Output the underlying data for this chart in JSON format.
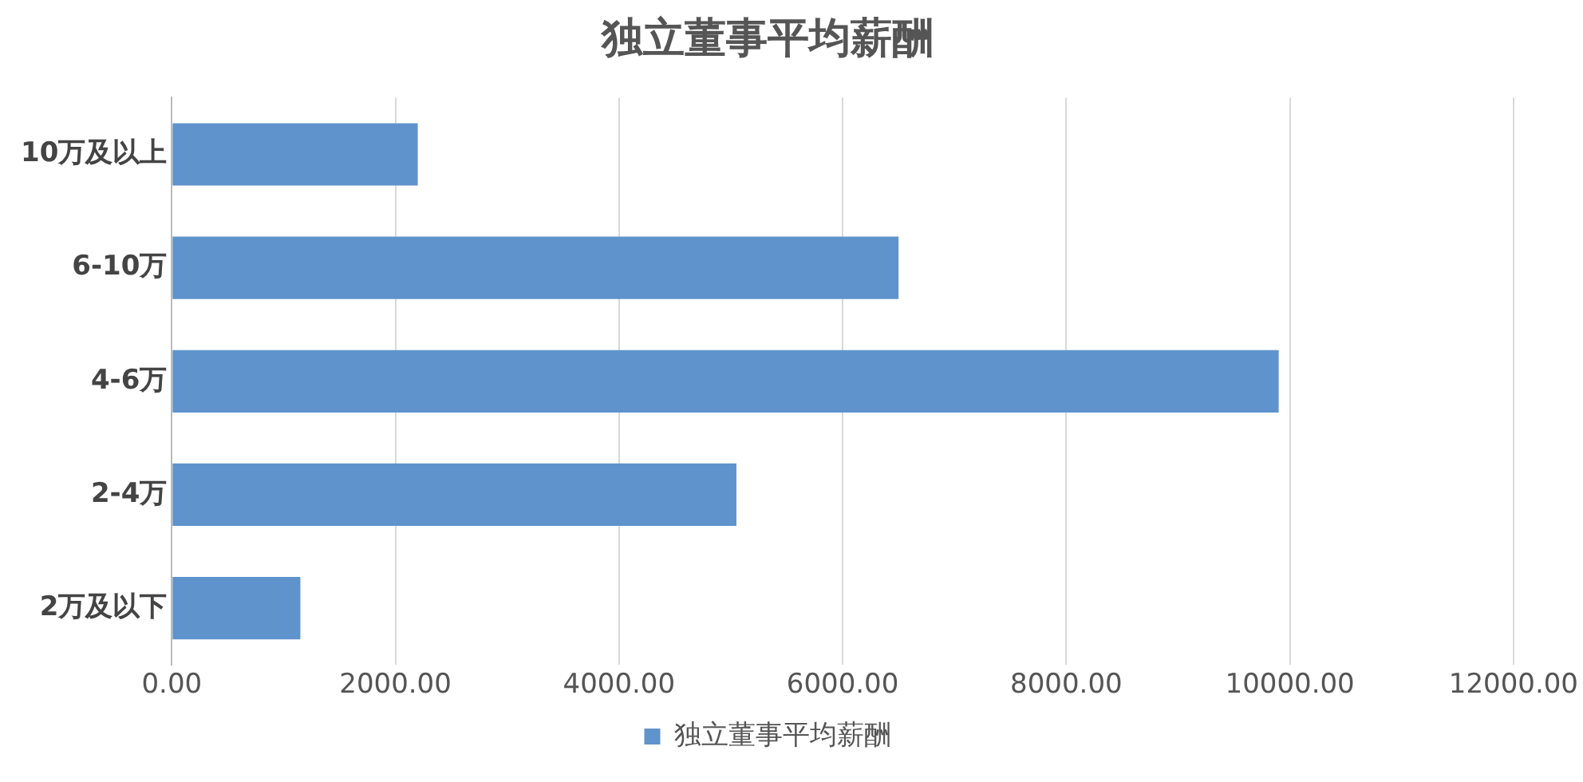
{
  "chart_data": {
    "type": "bar",
    "orientation": "horizontal",
    "title": "独立董事平均薪酬",
    "categories": [
      "10万及以上",
      "6-10万",
      "4-6万",
      "2-4万",
      "2万及以下"
    ],
    "series": [
      {
        "name": "独立董事平均薪酬",
        "color": "#5f93cc",
        "values": [
          2200,
          6500,
          9900,
          5050,
          1150
        ]
      }
    ],
    "xlim": [
      0,
      12000
    ],
    "xticks": [
      {
        "value": 0,
        "label": "0.00"
      },
      {
        "value": 2000,
        "label": "2000.00"
      },
      {
        "value": 4000,
        "label": "4000.00"
      },
      {
        "value": 6000,
        "label": "6000.00"
      },
      {
        "value": 8000,
        "label": "8000.00"
      },
      {
        "value": 10000,
        "label": "10000.00"
      },
      {
        "value": 12000,
        "label": "12000.00"
      }
    ],
    "grid": "x",
    "legend": "bottom"
  }
}
